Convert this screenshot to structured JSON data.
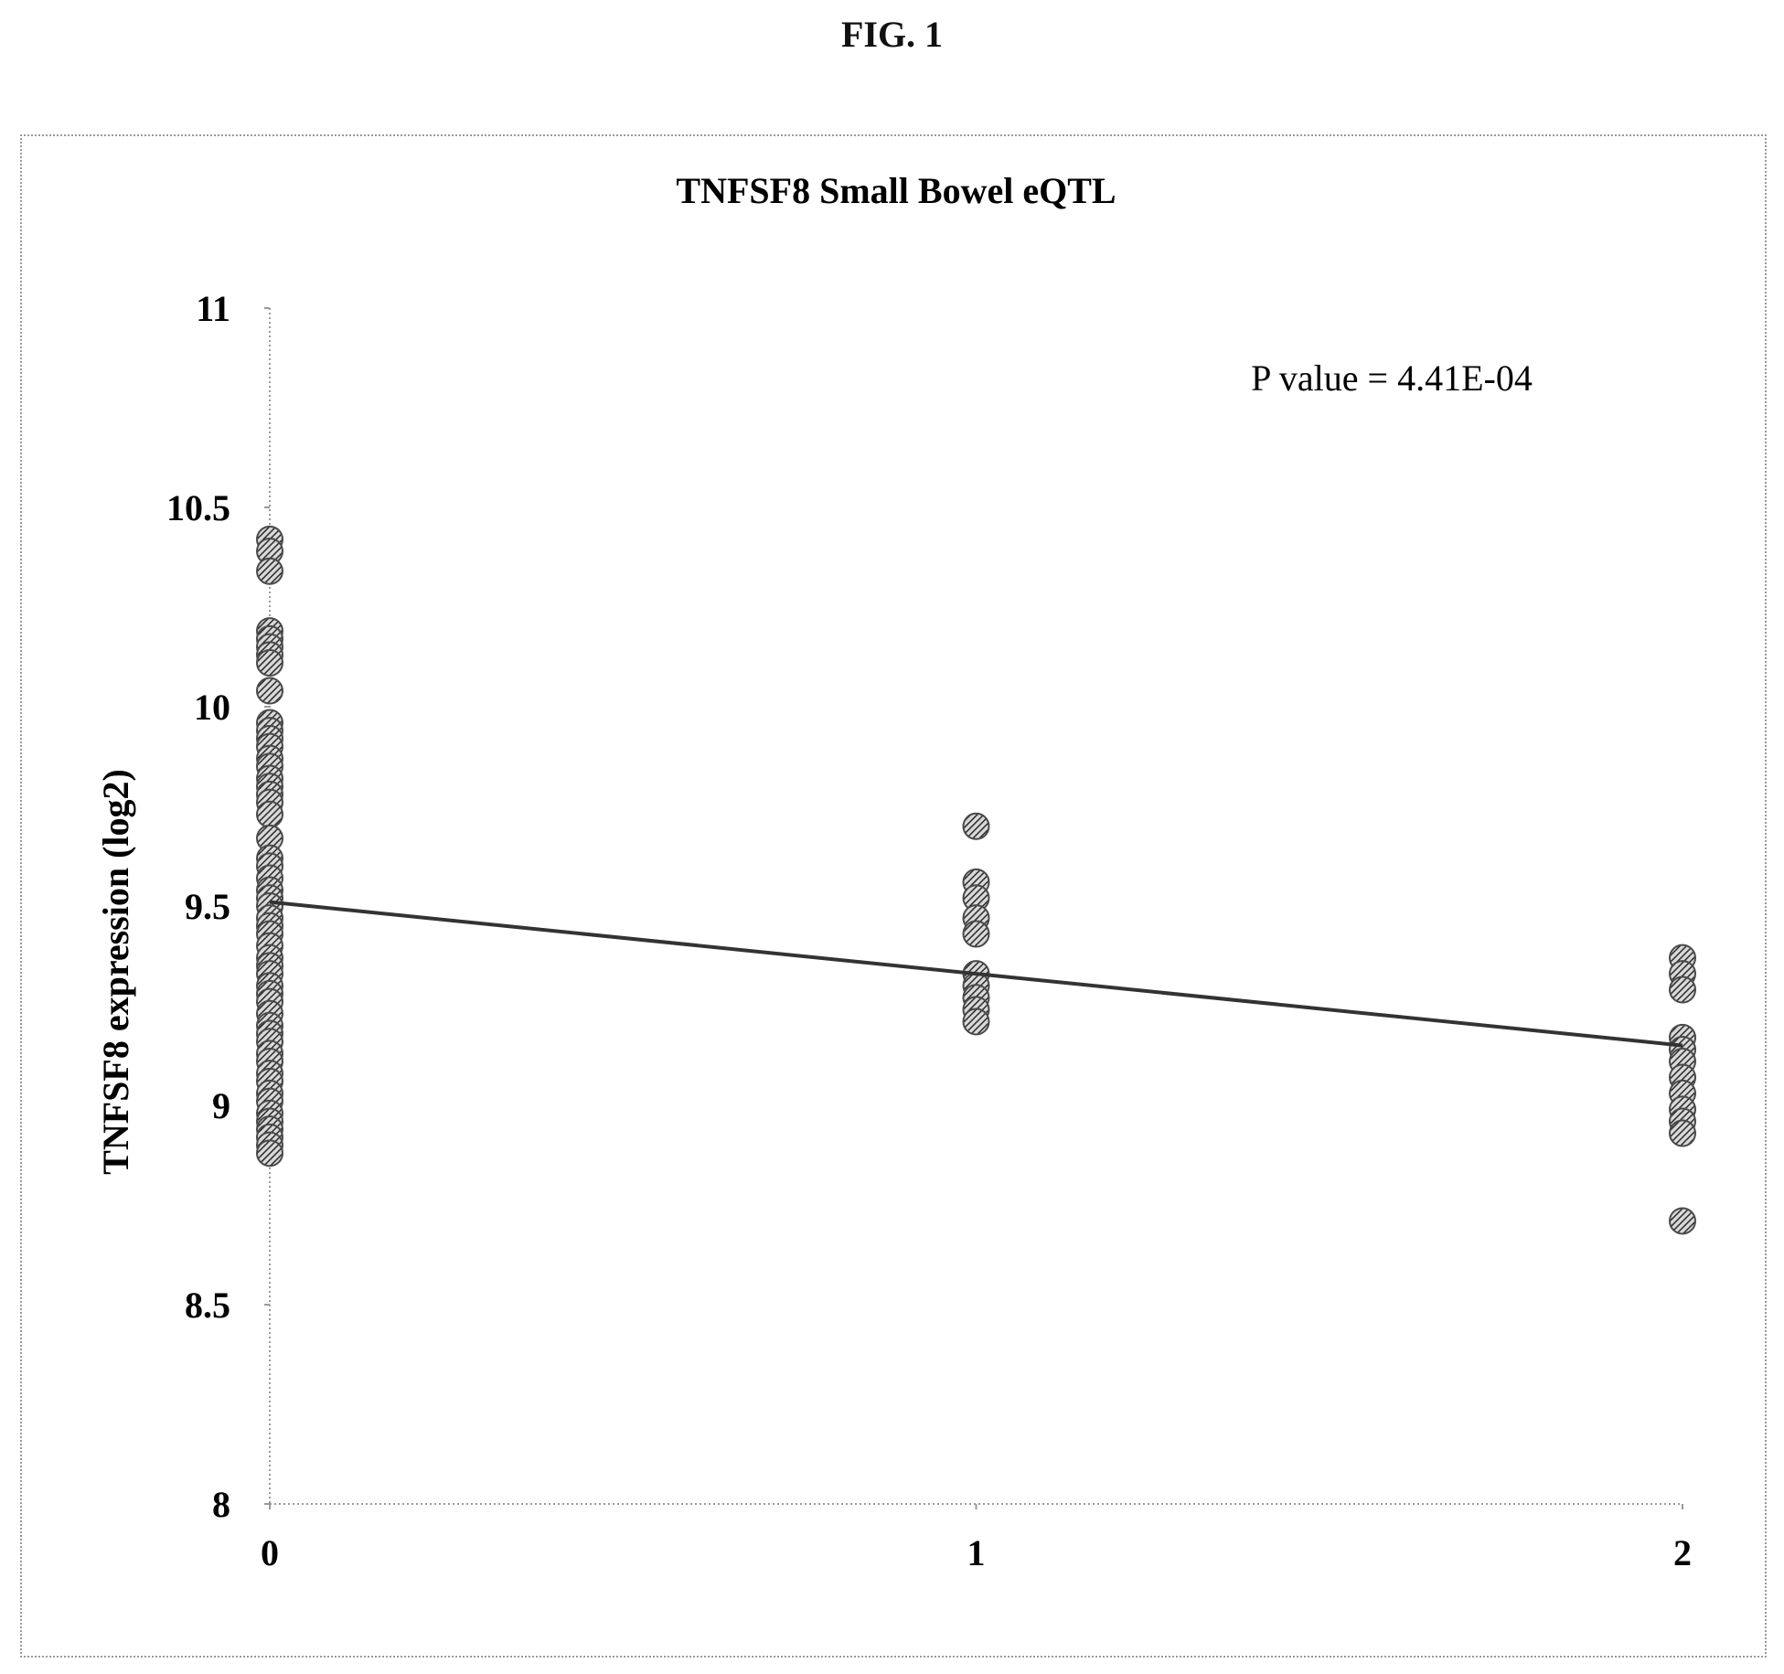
{
  "figure_label": "FIG. 1",
  "chart_data": {
    "type": "scatter",
    "title": "TNFSF8  Small  Bowel eQTL",
    "xlabel": "",
    "ylabel": "TNFSF8  expression (log2)",
    "xlim": [
      0,
      2
    ],
    "ylim": [
      8,
      11
    ],
    "x_ticks": [
      "0",
      "1",
      "2"
    ],
    "y_ticks": [
      "8",
      "8.5",
      "9",
      "9.5",
      "10",
      "10.5",
      "11"
    ],
    "annotation": "P value = 4.41E-04",
    "grid": false,
    "colors": {
      "points": "#4a4a4a",
      "line": "#333333",
      "axes": "#9a9a9a"
    },
    "series": [
      {
        "x": [
          0,
          0,
          0,
          0,
          0,
          0,
          0,
          0,
          0,
          0,
          0,
          0,
          0,
          0,
          0,
          0,
          0,
          0,
          0,
          0,
          0,
          0,
          0,
          0,
          0,
          0,
          0,
          0,
          0,
          0,
          0,
          0,
          0,
          0,
          0,
          0,
          0,
          0,
          0,
          0,
          0,
          0,
          0,
          0,
          0,
          0,
          0,
          0,
          0,
          0,
          0,
          0,
          0
        ],
        "y": [
          10.42,
          10.39,
          10.34,
          10.19,
          10.17,
          10.15,
          10.13,
          10.11,
          10.04,
          9.96,
          9.94,
          9.92,
          9.9,
          9.87,
          9.85,
          9.82,
          9.8,
          9.78,
          9.76,
          9.73,
          9.67,
          9.62,
          9.6,
          9.57,
          9.54,
          9.52,
          9.5,
          9.47,
          9.45,
          9.43,
          9.4,
          9.37,
          9.35,
          9.33,
          9.3,
          9.28,
          9.26,
          9.23,
          9.2,
          9.18,
          9.16,
          9.13,
          9.11,
          9.08,
          9.06,
          9.03,
          9.01,
          8.98,
          8.96,
          8.94,
          8.92,
          8.9,
          8.88
        ]
      },
      {
        "x": [
          1,
          1,
          1,
          1,
          1,
          1,
          1,
          1,
          1,
          1
        ],
        "y": [
          9.7,
          9.56,
          9.52,
          9.47,
          9.43,
          9.33,
          9.3,
          9.27,
          9.24,
          9.21
        ]
      },
      {
        "x": [
          2,
          2,
          2,
          2,
          2,
          2,
          2,
          2,
          2,
          2,
          2,
          2
        ],
        "y": [
          9.37,
          9.33,
          9.29,
          9.17,
          9.14,
          9.11,
          9.07,
          9.03,
          8.99,
          8.96,
          8.93,
          8.71
        ]
      }
    ],
    "trend_line": {
      "x": [
        0,
        1,
        2
      ],
      "y": [
        9.51,
        9.33,
        9.15
      ]
    }
  }
}
